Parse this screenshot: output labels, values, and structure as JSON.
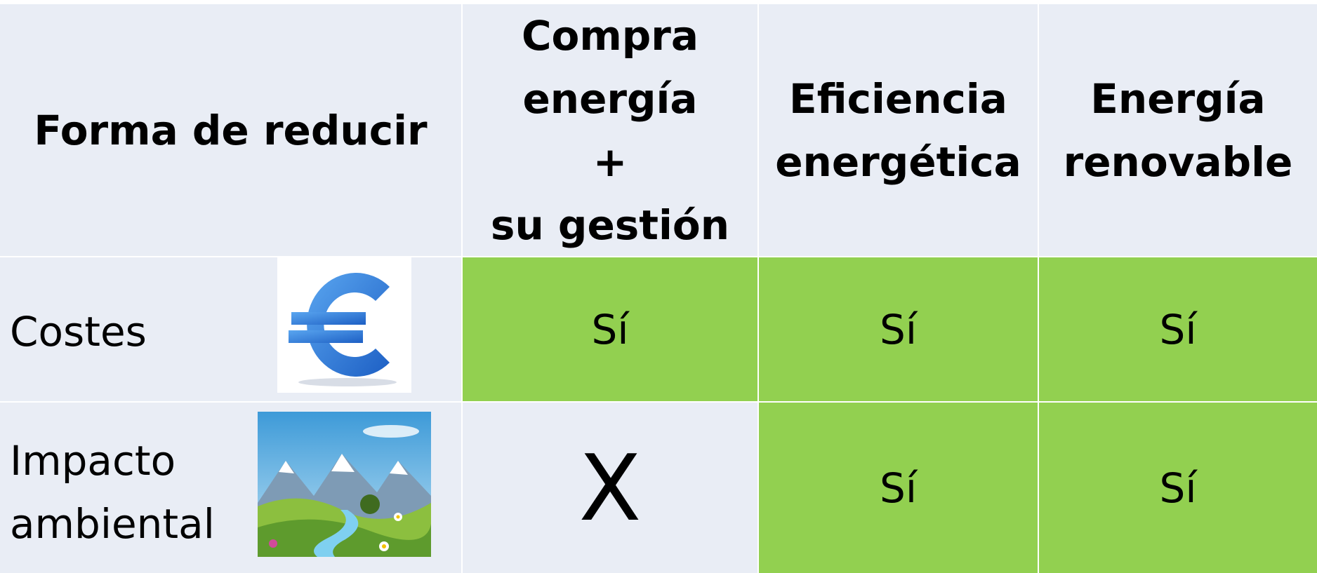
{
  "table": {
    "header": [
      [
        "Forma de reducir"
      ],
      [
        "Compra",
        "energía",
        "+",
        "su gestión"
      ],
      [
        "Eficiencia",
        "energética"
      ],
      [
        "Energía",
        "renovable"
      ]
    ],
    "rows": [
      {
        "label": [
          "Costes"
        ],
        "cells": [
          "Sí",
          "Sí",
          "Sí"
        ]
      },
      {
        "label": [
          "Impacto",
          "ambiental"
        ],
        "cells": [
          "X",
          "Sí",
          "Sí"
        ]
      }
    ]
  }
}
